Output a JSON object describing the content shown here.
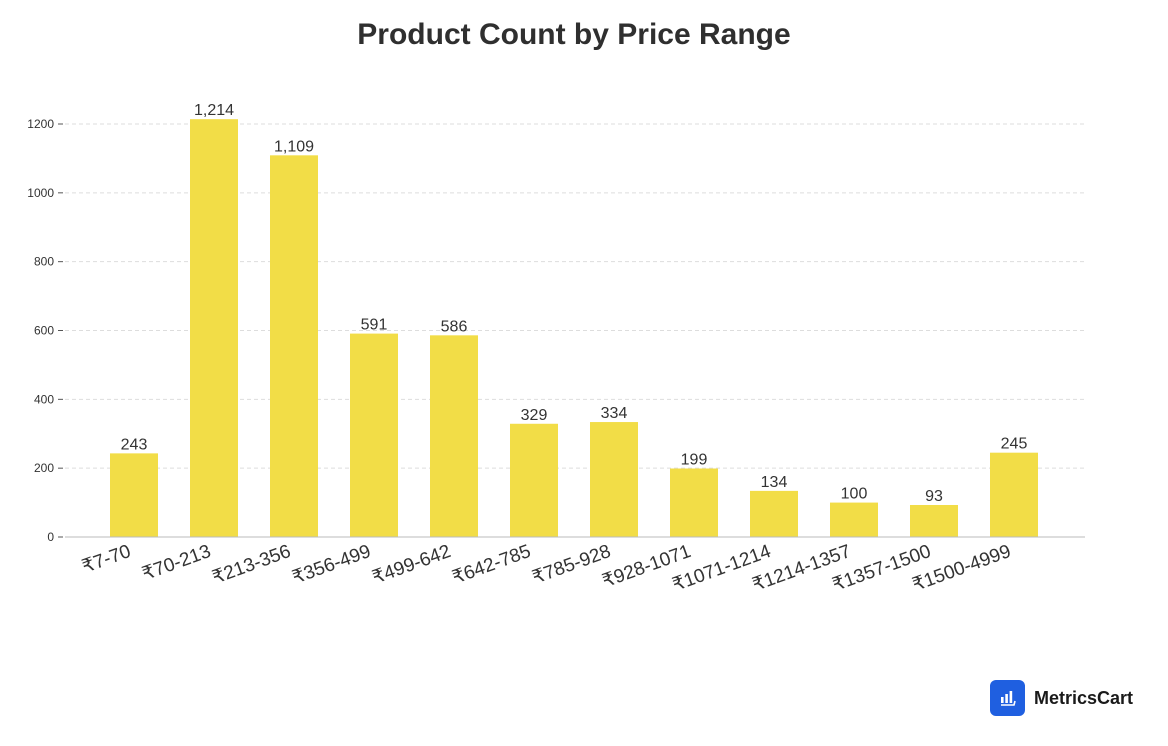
{
  "brand": {
    "name": "MetricsCart",
    "icon": "bar-chart-logo-icon",
    "color": "#1f5fe0"
  },
  "colors": {
    "bar": "#f2dd47",
    "grid": "#dddddd",
    "axis": "#bbbbbb"
  },
  "chart_data": {
    "type": "bar",
    "title": "Product Count by Price Range",
    "xlabel": "",
    "ylabel": "",
    "categories": [
      "₹7-70",
      "₹70-213",
      "₹213-356",
      "₹356-499",
      "₹499-642",
      "₹642-785",
      "₹785-928",
      "₹928-1071",
      "₹1071-1214",
      "₹1214-1357",
      "₹1357-1500",
      "₹1500-4999"
    ],
    "values": [
      243,
      1214,
      1109,
      591,
      586,
      329,
      334,
      199,
      134,
      100,
      93,
      245
    ],
    "data_labels": [
      "243",
      "1,214",
      "1,109",
      "591",
      "586",
      "329",
      "334",
      "199",
      "134",
      "100",
      "93",
      "245"
    ],
    "yticks": [
      0,
      200,
      400,
      600,
      800,
      1000,
      1200
    ],
    "ylim": [
      0,
      1250
    ],
    "grid": true,
    "legend": "none"
  }
}
